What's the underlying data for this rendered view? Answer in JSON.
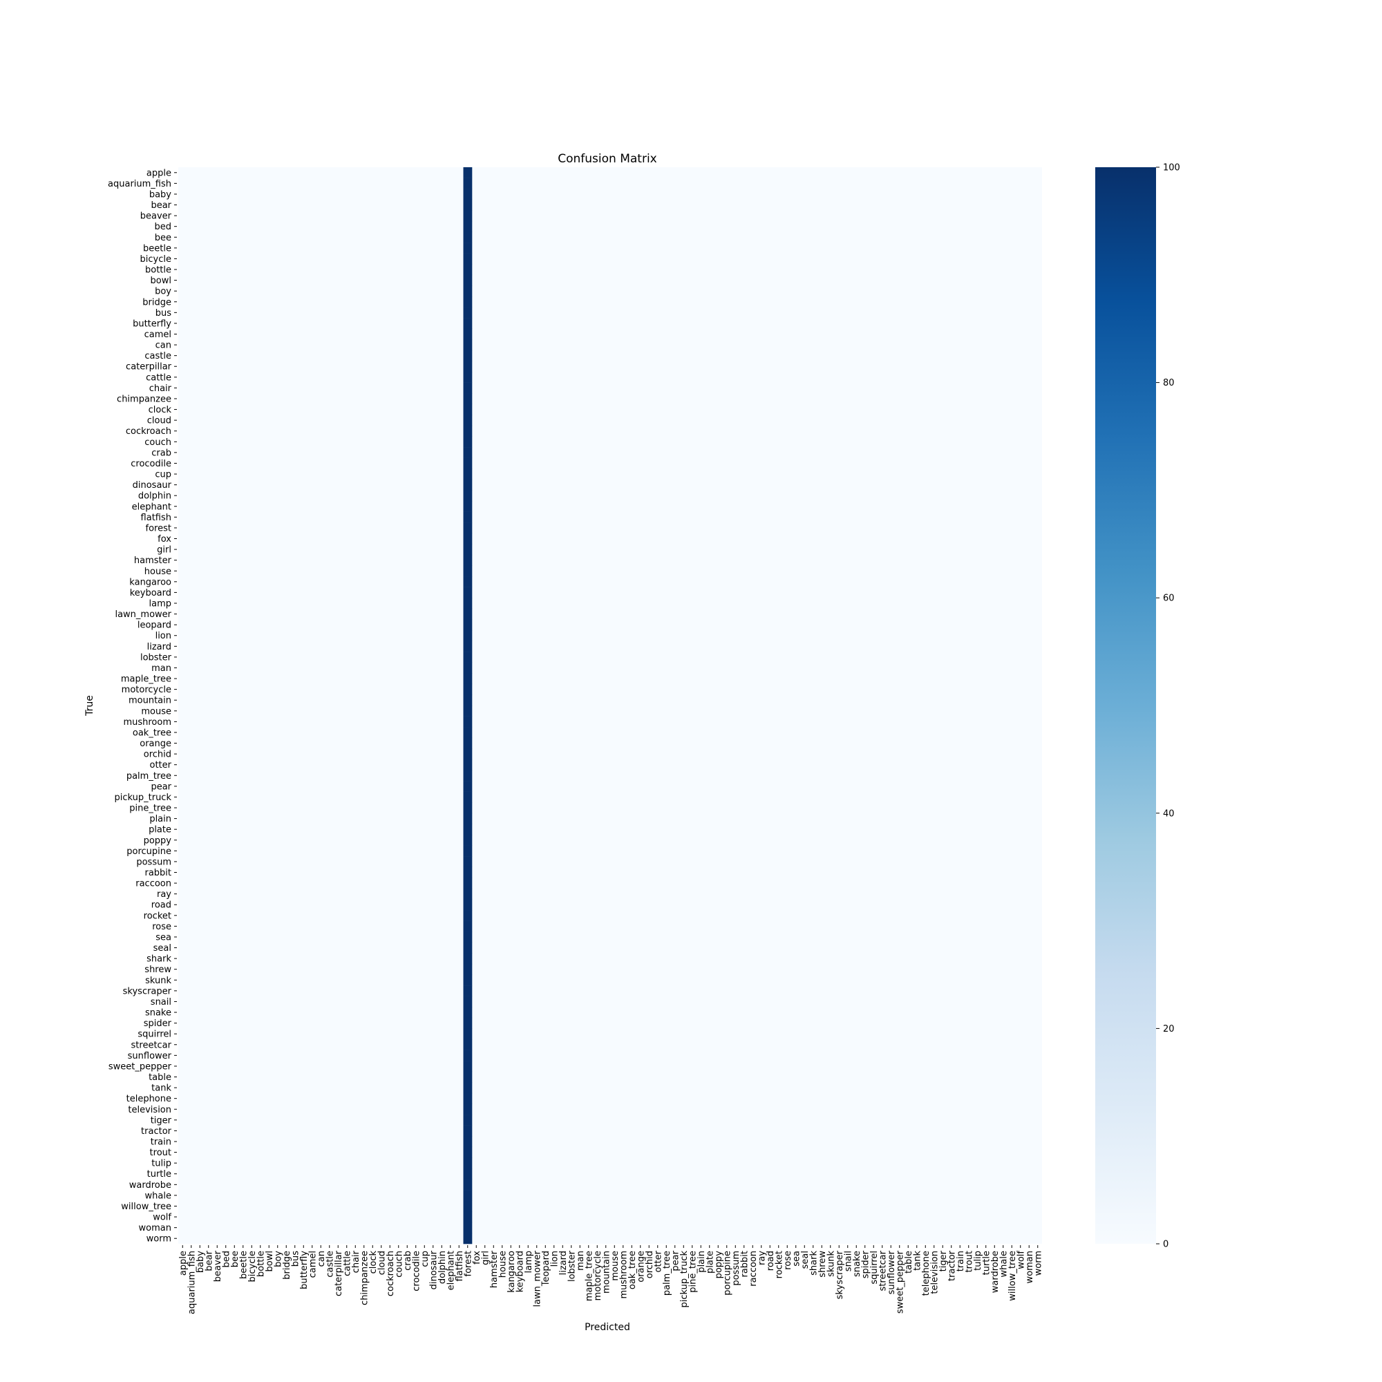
{
  "chart_data": {
    "type": "heatmap",
    "title": "Confusion Matrix",
    "xlabel": "Predicted",
    "ylabel": "True",
    "labels": [
      "apple",
      "aquarium_fish",
      "baby",
      "bear",
      "beaver",
      "bed",
      "bee",
      "beetle",
      "bicycle",
      "bottle",
      "bowl",
      "boy",
      "bridge",
      "bus",
      "butterfly",
      "camel",
      "can",
      "castle",
      "caterpillar",
      "cattle",
      "chair",
      "chimpanzee",
      "clock",
      "cloud",
      "cockroach",
      "couch",
      "crab",
      "crocodile",
      "cup",
      "dinosaur",
      "dolphin",
      "elephant",
      "flatfish",
      "forest",
      "fox",
      "girl",
      "hamster",
      "house",
      "kangaroo",
      "keyboard",
      "lamp",
      "lawn_mower",
      "leopard",
      "lion",
      "lizard",
      "lobster",
      "man",
      "maple_tree",
      "motorcycle",
      "mountain",
      "mouse",
      "mushroom",
      "oak_tree",
      "orange",
      "orchid",
      "otter",
      "palm_tree",
      "pear",
      "pickup_truck",
      "pine_tree",
      "plain",
      "plate",
      "poppy",
      "porcupine",
      "possum",
      "rabbit",
      "raccoon",
      "ray",
      "road",
      "rocket",
      "rose",
      "sea",
      "seal",
      "shark",
      "shrew",
      "skunk",
      "skyscraper",
      "snail",
      "snake",
      "spider",
      "squirrel",
      "streetcar",
      "sunflower",
      "sweet_pepper",
      "table",
      "tank",
      "telephone",
      "television",
      "tiger",
      "tractor",
      "train",
      "trout",
      "tulip",
      "turtle",
      "wardrobe",
      "whale",
      "willow_tree",
      "wolf",
      "woman",
      "worm"
    ],
    "predicted_column_all_rows": "forest",
    "cell_value_in_predicted_column": 100,
    "cell_value_elsewhere": 0,
    "colormap": "Blues",
    "colorbar": {
      "min": 0,
      "max": 100,
      "ticks": [
        0,
        20,
        40,
        60,
        80,
        100
      ]
    },
    "colors": {
      "low": "#f7fbff",
      "high": "#08306b"
    }
  }
}
